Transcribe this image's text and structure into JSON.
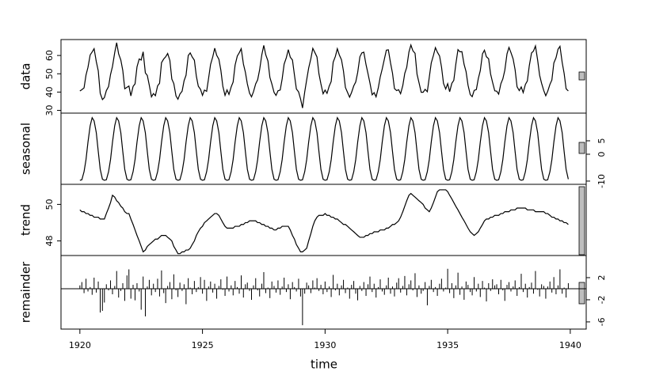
{
  "chart_data": {
    "type": "stl",
    "xlabel": "time",
    "xlim": [
      1919.23,
      1940.65
    ],
    "xticks": [
      1920,
      1925,
      1930,
      1935,
      1940
    ],
    "x": [
      1920,
      1920.08,
      1920.17,
      1920.25,
      1920.33,
      1920.42,
      1920.5,
      1920.58,
      1920.67,
      1920.75,
      1920.83,
      1920.92,
      1921,
      1921.08,
      1921.17,
      1921.25,
      1921.33,
      1921.42,
      1921.5,
      1921.58,
      1921.67,
      1921.75,
      1921.83,
      1921.92,
      1922,
      1922.08,
      1922.17,
      1922.25,
      1922.33,
      1922.42,
      1922.5,
      1922.58,
      1922.67,
      1922.75,
      1922.83,
      1922.92,
      1923,
      1923.08,
      1923.17,
      1923.25,
      1923.33,
      1923.42,
      1923.5,
      1923.58,
      1923.67,
      1923.75,
      1923.83,
      1923.92,
      1924,
      1924.08,
      1924.17,
      1924.25,
      1924.33,
      1924.42,
      1924.5,
      1924.58,
      1924.67,
      1924.75,
      1924.83,
      1924.92,
      1925,
      1925.08,
      1925.17,
      1925.25,
      1925.33,
      1925.42,
      1925.5,
      1925.58,
      1925.67,
      1925.75,
      1925.83,
      1925.92,
      1926,
      1926.08,
      1926.17,
      1926.25,
      1926.33,
      1926.42,
      1926.5,
      1926.58,
      1926.67,
      1926.75,
      1926.83,
      1926.92,
      1927,
      1927.08,
      1927.17,
      1927.25,
      1927.33,
      1927.42,
      1927.5,
      1927.58,
      1927.67,
      1927.75,
      1927.83,
      1927.92,
      1928,
      1928.08,
      1928.17,
      1928.25,
      1928.33,
      1928.42,
      1928.5,
      1928.58,
      1928.67,
      1928.75,
      1928.83,
      1928.92,
      1929,
      1929.08,
      1929.17,
      1929.25,
      1929.33,
      1929.42,
      1929.5,
      1929.58,
      1929.67,
      1929.75,
      1929.83,
      1929.92,
      1930,
      1930.08,
      1930.17,
      1930.25,
      1930.33,
      1930.42,
      1930.5,
      1930.58,
      1930.67,
      1930.75,
      1930.83,
      1930.92,
      1931,
      1931.08,
      1931.17,
      1931.25,
      1931.33,
      1931.42,
      1931.5,
      1931.58,
      1931.67,
      1931.75,
      1931.83,
      1931.92,
      1932,
      1932.08,
      1932.17,
      1932.25,
      1932.33,
      1932.42,
      1932.5,
      1932.58,
      1932.67,
      1932.75,
      1932.83,
      1932.92,
      1933,
      1933.08,
      1933.17,
      1933.25,
      1933.33,
      1933.42,
      1933.5,
      1933.58,
      1933.67,
      1933.75,
      1933.83,
      1933.92,
      1934,
      1934.08,
      1934.17,
      1934.25,
      1934.33,
      1934.42,
      1934.5,
      1934.58,
      1934.67,
      1934.75,
      1934.83,
      1934.92,
      1935,
      1935.08,
      1935.17,
      1935.25,
      1935.33,
      1935.42,
      1935.5,
      1935.58,
      1935.67,
      1935.75,
      1935.83,
      1935.92,
      1936,
      1936.08,
      1936.17,
      1936.25,
      1936.33,
      1936.42,
      1936.5,
      1936.58,
      1936.67,
      1936.75,
      1936.83,
      1936.92,
      1937,
      1937.08,
      1937.17,
      1937.25,
      1937.33,
      1937.42,
      1937.5,
      1937.58,
      1937.67,
      1937.75,
      1937.83,
      1937.92,
      1938,
      1938.08,
      1938.17,
      1938.25,
      1938.33,
      1938.42,
      1938.5,
      1938.58,
      1938.67,
      1938.75,
      1938.83,
      1938.92,
      1939,
      1939.08,
      1939.17,
      1939.25,
      1939.33,
      1939.42,
      1939.5,
      1939.58,
      1939.67,
      1939.75,
      1939.83,
      1939.92
    ],
    "series": [
      {
        "name": "data",
        "type": "line",
        "color": "#000000",
        "ylim": [
          28.5,
          68.7
        ],
        "yticks": [
          30,
          40,
          50,
          60
        ],
        "values": [
          40.6,
          41.3,
          42.3,
          49.3,
          53.5,
          60.3,
          61.9,
          63.7,
          56.6,
          51.6,
          39.3,
          35.9,
          37.0,
          40.8,
          43.0,
          49.6,
          54.0,
          61.5,
          67.0,
          60.9,
          57.5,
          51.8,
          41.8,
          42.6,
          43.3,
          37.9,
          43.1,
          44.5,
          53.8,
          58.1,
          57.5,
          62.0,
          50.5,
          49.1,
          43.8,
          37.4,
          39.2,
          38.0,
          43.4,
          44.8,
          56.1,
          58.1,
          59.3,
          61.1,
          57.3,
          47.1,
          44.7,
          37.9,
          36.1,
          38.9,
          40.5,
          46.2,
          49.2,
          60.0,
          61.4,
          59.2,
          57.4,
          48.7,
          43.2,
          41.5,
          38.2,
          41.1,
          40.4,
          47.6,
          55.1,
          59.3,
          64.0,
          60.1,
          57.9,
          51.9,
          43.2,
          38.2,
          41.2,
          38.7,
          42.8,
          45.5,
          54.7,
          59.7,
          61.5,
          63.7,
          55.3,
          50.8,
          44.5,
          39.4,
          37.4,
          40.2,
          44.5,
          46.7,
          52.1,
          60.4,
          65.5,
          60.4,
          57.0,
          48.0,
          44.4,
          39.8,
          38.2,
          40.7,
          41.1,
          47.2,
          55.3,
          58.8,
          63.2,
          59.1,
          57.5,
          49.4,
          41.7,
          40.1,
          36.3,
          31.3,
          40.1,
          46.7,
          53.1,
          58.2,
          63.9,
          61.7,
          59.2,
          50.0,
          44.5,
          39.1,
          41.1,
          39.3,
          43.3,
          45.8,
          56.3,
          59.5,
          63.7,
          60.3,
          57.6,
          51.5,
          42.5,
          39.7,
          37.2,
          39.8,
          43.4,
          45.5,
          50.7,
          59.3,
          61.4,
          61.8,
          55.0,
          50.1,
          45.0,
          38.5,
          39.7,
          37.4,
          42.3,
          48.3,
          52.6,
          58.1,
          62.9,
          63.1,
          55.9,
          50.3,
          41.9,
          40.8,
          41.3,
          39.1,
          43.6,
          50.2,
          53.5,
          61.9,
          65.7,
          62.6,
          61.2,
          49.8,
          45.2,
          39.9,
          39.9,
          41.5,
          40.2,
          48.1,
          55.9,
          60.1,
          64.3,
          61.8,
          59.7,
          53.6,
          44.7,
          41.7,
          44.6,
          40.2,
          44.8,
          46.4,
          55.0,
          63.2,
          62.0,
          62.1,
          55.1,
          51.2,
          43.8,
          38.6,
          37.5,
          40.9,
          41.4,
          47.4,
          51.7,
          60.9,
          62.9,
          59.3,
          58.2,
          49.9,
          45.4,
          40.7,
          40.5,
          38.9,
          44.6,
          47.2,
          51.9,
          60.9,
          64.4,
          61.6,
          58.1,
          52.2,
          42.9,
          40.8,
          42.8,
          39.7,
          44.2,
          46.1,
          54.5,
          61.4,
          62.4,
          65.2,
          57.4,
          49.2,
          44.8,
          40.8,
          38.0,
          40.4,
          44.2,
          46.6,
          55.9,
          58.8,
          63.4,
          65.0,
          56.2,
          50.2,
          41.8,
          40.6
        ]
      },
      {
        "name": "seasonal",
        "type": "line",
        "color": "#000000",
        "ylim": [
          -11.2,
          15.3
        ],
        "yticks": [
          -10,
          0,
          5
        ],
        "values": [
          -9.7,
          -9.5,
          -6.5,
          -2.0,
          4.5,
          10.6,
          13.6,
          12.4,
          8.0,
          1.0,
          -5.6,
          -9.3,
          -9.7,
          -9.5,
          -6.5,
          -2.0,
          4.5,
          10.6,
          13.6,
          12.4,
          8.0,
          1.0,
          -5.6,
          -9.3,
          -9.7,
          -9.5,
          -6.5,
          -2.0,
          4.5,
          10.6,
          13.6,
          12.4,
          8.0,
          1.0,
          -5.6,
          -9.3,
          -9.7,
          -9.5,
          -6.5,
          -2.0,
          4.5,
          10.6,
          13.6,
          12.4,
          8.0,
          1.0,
          -5.6,
          -9.3,
          -9.7,
          -9.5,
          -6.5,
          -2.0,
          4.5,
          10.6,
          13.6,
          12.4,
          8.0,
          1.0,
          -5.6,
          -9.3,
          -9.7,
          -9.5,
          -6.5,
          -2.0,
          4.5,
          10.6,
          13.6,
          12.4,
          8.0,
          1.0,
          -5.6,
          -9.3,
          -9.7,
          -9.5,
          -6.5,
          -2.0,
          4.5,
          10.6,
          13.6,
          12.4,
          8.0,
          1.0,
          -5.6,
          -9.3,
          -9.7,
          -9.5,
          -6.5,
          -2.0,
          4.5,
          10.6,
          13.6,
          12.4,
          8.0,
          1.0,
          -5.6,
          -9.3,
          -9.7,
          -9.5,
          -6.5,
          -2.0,
          4.5,
          10.6,
          13.6,
          12.4,
          8.0,
          1.0,
          -5.6,
          -9.3,
          -9.7,
          -9.5,
          -6.5,
          -2.0,
          4.5,
          10.6,
          13.6,
          12.4,
          8.0,
          1.0,
          -5.6,
          -9.3,
          -9.7,
          -9.5,
          -6.5,
          -2.0,
          4.5,
          10.6,
          13.6,
          12.4,
          8.0,
          1.0,
          -5.6,
          -9.3,
          -9.7,
          -9.5,
          -6.5,
          -2.0,
          4.5,
          10.6,
          13.6,
          12.4,
          8.0,
          1.0,
          -5.6,
          -9.3,
          -9.7,
          -9.5,
          -6.5,
          -2.0,
          4.5,
          10.6,
          13.6,
          12.4,
          8.0,
          1.0,
          -5.6,
          -9.3,
          -9.7,
          -9.5,
          -6.5,
          -2.0,
          4.5,
          10.6,
          13.6,
          12.4,
          8.0,
          1.0,
          -5.6,
          -9.3,
          -9.7,
          -9.5,
          -6.5,
          -2.0,
          4.5,
          10.6,
          13.6,
          12.4,
          8.0,
          1.0,
          -5.6,
          -9.3,
          -9.7,
          -9.5,
          -6.5,
          -2.0,
          4.5,
          10.6,
          13.6,
          12.4,
          8.0,
          1.0,
          -5.6,
          -9.3,
          -9.7,
          -9.5,
          -6.5,
          -2.0,
          4.5,
          10.6,
          13.6,
          12.4,
          8.0,
          1.0,
          -5.6,
          -9.3,
          -9.7,
          -9.5,
          -6.5,
          -2.0,
          4.5,
          10.6,
          13.6,
          12.4,
          8.0,
          1.0,
          -5.6,
          -9.3,
          -9.7,
          -9.5,
          -6.5,
          -2.0,
          4.5,
          10.6,
          13.6,
          12.4,
          8.0,
          1.0,
          -5.6,
          -9.3,
          -9.7,
          -9.5,
          -6.5,
          -2.0,
          4.5,
          10.6,
          13.6,
          12.4,
          8.0,
          1.0,
          -5.6,
          -9.3
        ]
      },
      {
        "name": "trend",
        "type": "line",
        "color": "#000000",
        "ylim": [
          47.2,
          51.1
        ],
        "yticks": [
          48,
          50
        ],
        "values": [
          49.7,
          49.6,
          49.6,
          49.5,
          49.5,
          49.4,
          49.4,
          49.3,
          49.3,
          49.3,
          49.2,
          49.2,
          49.2,
          49.5,
          49.8,
          50.1,
          50.5,
          50.4,
          50.2,
          50.1,
          49.9,
          49.8,
          49.6,
          49.5,
          49.5,
          49.2,
          48.9,
          48.6,
          48.3,
          48.0,
          47.7,
          47.4,
          47.5,
          47.7,
          47.8,
          47.9,
          48.0,
          48.1,
          48.1,
          48.2,
          48.3,
          48.3,
          48.3,
          48.2,
          48.1,
          48.0,
          47.7,
          47.5,
          47.3,
          47.3,
          47.4,
          47.4,
          47.5,
          47.5,
          47.6,
          47.8,
          48.0,
          48.3,
          48.5,
          48.7,
          48.8,
          49.0,
          49.1,
          49.2,
          49.3,
          49.4,
          49.5,
          49.5,
          49.4,
          49.2,
          49.0,
          48.8,
          48.7,
          48.7,
          48.7,
          48.7,
          48.8,
          48.8,
          48.8,
          48.9,
          48.9,
          49.0,
          49.0,
          49.1,
          49.1,
          49.1,
          49.1,
          49.0,
          49.0,
          48.9,
          48.9,
          48.8,
          48.8,
          48.7,
          48.7,
          48.6,
          48.6,
          48.7,
          48.7,
          48.8,
          48.8,
          48.8,
          48.8,
          48.6,
          48.3,
          48.1,
          47.8,
          47.6,
          47.4,
          47.4,
          47.5,
          47.6,
          48.0,
          48.4,
          48.8,
          49.1,
          49.3,
          49.4,
          49.4,
          49.4,
          49.5,
          49.4,
          49.4,
          49.3,
          49.3,
          49.2,
          49.2,
          49.1,
          49.0,
          48.9,
          48.9,
          48.8,
          48.7,
          48.6,
          48.5,
          48.4,
          48.3,
          48.2,
          48.2,
          48.2,
          48.3,
          48.3,
          48.4,
          48.4,
          48.5,
          48.5,
          48.5,
          48.6,
          48.6,
          48.6,
          48.7,
          48.7,
          48.8,
          48.9,
          48.9,
          49.0,
          49.1,
          49.3,
          49.6,
          49.9,
          50.2,
          50.5,
          50.6,
          50.5,
          50.4,
          50.3,
          50.2,
          50.1,
          50.0,
          49.8,
          49.7,
          49.6,
          49.8,
          50.1,
          50.4,
          50.7,
          50.8,
          50.8,
          50.8,
          50.8,
          50.7,
          50.5,
          50.3,
          50.1,
          49.9,
          49.7,
          49.5,
          49.3,
          49.1,
          48.9,
          48.7,
          48.5,
          48.4,
          48.3,
          48.4,
          48.5,
          48.7,
          48.9,
          49.1,
          49.2,
          49.2,
          49.3,
          49.3,
          49.4,
          49.4,
          49.4,
          49.5,
          49.5,
          49.6,
          49.6,
          49.6,
          49.7,
          49.7,
          49.7,
          49.8,
          49.8,
          49.8,
          49.8,
          49.8,
          49.7,
          49.7,
          49.7,
          49.7,
          49.6,
          49.6,
          49.6,
          49.6,
          49.6,
          49.5,
          49.5,
          49.4,
          49.3,
          49.3,
          49.2,
          49.2,
          49.1,
          49.1,
          49.0,
          49.0,
          48.9
        ]
      },
      {
        "name": "remainder",
        "type": "bar",
        "color": "#000000",
        "ylim": [
          -7.3,
          6
        ],
        "yticks": [
          -6,
          -2,
          2
        ],
        "values": [
          0.6,
          1.2,
          -0.8,
          1.8,
          -0.5,
          0.3,
          -1.1,
          2.0,
          -0.7,
          1.3,
          -4.3,
          -4.0,
          -2.5,
          0.8,
          -0.3,
          1.5,
          -1.0,
          0.5,
          3.2,
          -1.6,
          -0.4,
          1.0,
          -2.2,
          2.4,
          3.5,
          -1.8,
          0.7,
          -2.1,
          1.0,
          -0.5,
          -3.8,
          2.2,
          -5.0,
          0.4,
          1.6,
          -1.2,
          0.9,
          -0.6,
          1.8,
          -1.4,
          3.3,
          -0.8,
          -2.6,
          0.5,
          1.2,
          -1.9,
          2.6,
          -0.3,
          -1.5,
          1.1,
          -0.4,
          0.8,
          -2.8,
          1.9,
          0.2,
          -1.0,
          1.4,
          -0.6,
          0.3,
          2.1,
          -0.9,
          1.6,
          -2.2,
          0.4,
          1.3,
          -0.7,
          0.9,
          -1.8,
          0.5,
          1.7,
          -0.2,
          -1.3,
          2.2,
          -0.5,
          0.6,
          -1.2,
          1.4,
          0.3,
          -0.9,
          2.4,
          -1.6,
          0.8,
          1.1,
          -0.4,
          -2.0,
          0.6,
          1.9,
          -0.3,
          -1.4,
          0.9,
          3.0,
          -0.8,
          0.2,
          -1.7,
          1.3,
          0.5,
          -0.7,
          1.5,
          -1.1,
          0.4,
          2.0,
          -0.6,
          0.8,
          -1.9,
          1.2,
          0.3,
          -0.5,
          1.8,
          -1.4,
          -6.6,
          -0.9,
          1.1,
          0.6,
          -0.8,
          1.5,
          0.2,
          1.9,
          -0.4,
          0.7,
          -1.0,
          1.3,
          -0.6,
          0.4,
          -1.5,
          2.5,
          -0.3,
          0.9,
          -1.2,
          0.6,
          1.6,
          -0.8,
          0.2,
          -1.8,
          0.7,
          1.4,
          -0.9,
          -2.1,
          0.5,
          -0.4,
          1.2,
          -1.3,
          0.8,
          2.2,
          -0.6,
          0.9,
          -1.6,
          0.3,
          1.7,
          -0.5,
          -1.1,
          0.6,
          2.0,
          -0.9,
          0.4,
          -1.4,
          1.1,
          1.9,
          -0.7,
          0.5,
          2.3,
          -1.2,
          0.8,
          1.5,
          -0.3,
          2.8,
          -1.5,
          0.6,
          -0.9,
          -0.4,
          1.2,
          -3.0,
          0.5,
          1.6,
          -0.6,
          0.3,
          -1.3,
          0.9,
          1.8,
          -0.5,
          0.2,
          3.6,
          -0.8,
          1.0,
          -1.7,
          0.6,
          2.9,
          -1.1,
          0.4,
          -2.0,
          1.3,
          0.7,
          -0.6,
          -1.2,
          2.1,
          -0.5,
          0.9,
          -1.5,
          1.4,
          0.2,
          -2.3,
          1.0,
          -0.4,
          1.7,
          0.6,
          0.8,
          -1.0,
          1.6,
          -0.3,
          -2.2,
          0.7,
          1.2,
          -0.5,
          0.4,
          1.5,
          -1.3,
          0.3,
          2.7,
          -0.6,
          0.9,
          -1.6,
          0.3,
          1.1,
          -0.9,
          3.2,
          -0.2,
          -1.4,
          0.8,
          0.5,
          -1.8,
          0.4,
          1.3,
          -0.7,
          2.1,
          -1.0,
          0.6,
          3.5,
          -0.9,
          0.2,
          -1.6,
          1.0
        ]
      }
    ]
  }
}
